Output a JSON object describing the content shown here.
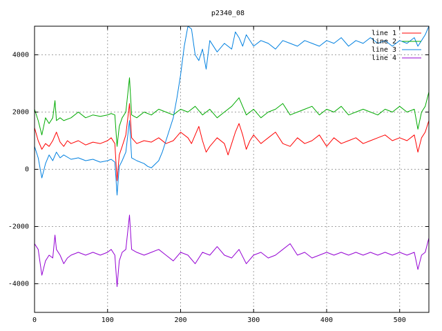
{
  "chart_data": {
    "type": "line",
    "title": "p2340_08",
    "xlabel": "",
    "ylabel": "",
    "xlim": [
      0,
      540
    ],
    "ylim": [
      -5000,
      5000
    ],
    "x_ticks": [
      0,
      100,
      200,
      300,
      400,
      500
    ],
    "y_ticks": [
      -4000,
      -2000,
      0,
      2000,
      4000
    ],
    "grid": true,
    "legend_position": "top-right",
    "series": [
      {
        "name": "line 1",
        "color": "#ff0000",
        "points": [
          [
            0,
            1450
          ],
          [
            5,
            1000
          ],
          [
            10,
            700
          ],
          [
            15,
            900
          ],
          [
            20,
            800
          ],
          [
            25,
            1000
          ],
          [
            30,
            1300
          ],
          [
            35,
            950
          ],
          [
            40,
            800
          ],
          [
            45,
            1000
          ],
          [
            50,
            900
          ],
          [
            60,
            1000
          ],
          [
            70,
            850
          ],
          [
            80,
            950
          ],
          [
            90,
            900
          ],
          [
            100,
            1000
          ],
          [
            105,
            1100
          ],
          [
            110,
            900
          ],
          [
            113,
            -400
          ],
          [
            116,
            500
          ],
          [
            120,
            800
          ],
          [
            125,
            1200
          ],
          [
            130,
            2300
          ],
          [
            133,
            1100
          ],
          [
            140,
            900
          ],
          [
            150,
            1000
          ],
          [
            160,
            950
          ],
          [
            170,
            1100
          ],
          [
            180,
            900
          ],
          [
            190,
            1000
          ],
          [
            200,
            1300
          ],
          [
            210,
            1100
          ],
          [
            215,
            900
          ],
          [
            220,
            1200
          ],
          [
            225,
            1500
          ],
          [
            230,
            1000
          ],
          [
            235,
            600
          ],
          [
            240,
            800
          ],
          [
            250,
            1100
          ],
          [
            260,
            900
          ],
          [
            265,
            500
          ],
          [
            270,
            900
          ],
          [
            275,
            1300
          ],
          [
            280,
            1600
          ],
          [
            285,
            1200
          ],
          [
            290,
            700
          ],
          [
            295,
            1000
          ],
          [
            300,
            1200
          ],
          [
            310,
            900
          ],
          [
            320,
            1100
          ],
          [
            330,
            1300
          ],
          [
            340,
            900
          ],
          [
            350,
            800
          ],
          [
            360,
            1100
          ],
          [
            370,
            900
          ],
          [
            380,
            1000
          ],
          [
            390,
            1200
          ],
          [
            400,
            800
          ],
          [
            410,
            1100
          ],
          [
            420,
            900
          ],
          [
            430,
            1000
          ],
          [
            440,
            1100
          ],
          [
            450,
            900
          ],
          [
            460,
            1000
          ],
          [
            470,
            1100
          ],
          [
            480,
            1200
          ],
          [
            490,
            1000
          ],
          [
            500,
            1100
          ],
          [
            510,
            1000
          ],
          [
            520,
            1200
          ],
          [
            525,
            600
          ],
          [
            530,
            1100
          ],
          [
            535,
            1300
          ],
          [
            540,
            1700
          ]
        ]
      },
      {
        "name": "line 2",
        "color": "#00aa00",
        "points": [
          [
            0,
            2100
          ],
          [
            5,
            1700
          ],
          [
            10,
            1200
          ],
          [
            15,
            1800
          ],
          [
            20,
            1600
          ],
          [
            25,
            1800
          ],
          [
            28,
            2400
          ],
          [
            30,
            1700
          ],
          [
            35,
            1800
          ],
          [
            40,
            1700
          ],
          [
            50,
            1800
          ],
          [
            60,
            2000
          ],
          [
            70,
            1800
          ],
          [
            80,
            1900
          ],
          [
            90,
            1850
          ],
          [
            100,
            1900
          ],
          [
            105,
            1950
          ],
          [
            110,
            1900
          ],
          [
            113,
            800
          ],
          [
            116,
            1500
          ],
          [
            120,
            1800
          ],
          [
            125,
            2000
          ],
          [
            130,
            3200
          ],
          [
            133,
            1900
          ],
          [
            140,
            1800
          ],
          [
            150,
            2000
          ],
          [
            160,
            1900
          ],
          [
            170,
            2100
          ],
          [
            180,
            2000
          ],
          [
            190,
            1900
          ],
          [
            200,
            2100
          ],
          [
            210,
            2000
          ],
          [
            220,
            2200
          ],
          [
            230,
            1900
          ],
          [
            240,
            2100
          ],
          [
            250,
            1800
          ],
          [
            260,
            2000
          ],
          [
            270,
            2200
          ],
          [
            280,
            2500
          ],
          [
            290,
            1900
          ],
          [
            300,
            2100
          ],
          [
            310,
            1800
          ],
          [
            320,
            2000
          ],
          [
            330,
            2100
          ],
          [
            340,
            2300
          ],
          [
            350,
            1900
          ],
          [
            360,
            2000
          ],
          [
            370,
            2100
          ],
          [
            380,
            2200
          ],
          [
            390,
            1900
          ],
          [
            400,
            2100
          ],
          [
            410,
            2000
          ],
          [
            420,
            2200
          ],
          [
            430,
            1900
          ],
          [
            440,
            2000
          ],
          [
            450,
            2100
          ],
          [
            460,
            2000
          ],
          [
            470,
            1900
          ],
          [
            480,
            2100
          ],
          [
            490,
            2000
          ],
          [
            500,
            2200
          ],
          [
            510,
            2000
          ],
          [
            520,
            2100
          ],
          [
            525,
            1400
          ],
          [
            530,
            2000
          ],
          [
            535,
            2200
          ],
          [
            540,
            2700
          ]
        ]
      },
      {
        "name": "line 3",
        "color": "#0080e0",
        "points": [
          [
            0,
            800
          ],
          [
            5,
            400
          ],
          [
            10,
            -300
          ],
          [
            15,
            200
          ],
          [
            20,
            500
          ],
          [
            25,
            300
          ],
          [
            30,
            600
          ],
          [
            35,
            400
          ],
          [
            40,
            500
          ],
          [
            50,
            350
          ],
          [
            60,
            400
          ],
          [
            70,
            300
          ],
          [
            80,
            350
          ],
          [
            90,
            250
          ],
          [
            100,
            300
          ],
          [
            105,
            350
          ],
          [
            110,
            250
          ],
          [
            113,
            -900
          ],
          [
            116,
            100
          ],
          [
            120,
            300
          ],
          [
            125,
            600
          ],
          [
            130,
            1700
          ],
          [
            133,
            400
          ],
          [
            140,
            300
          ],
          [
            150,
            200
          ],
          [
            155,
            100
          ],
          [
            160,
            50
          ],
          [
            170,
            300
          ],
          [
            175,
            600
          ],
          [
            180,
            1000
          ],
          [
            185,
            1400
          ],
          [
            190,
            1800
          ],
          [
            195,
            2500
          ],
          [
            200,
            3300
          ],
          [
            205,
            4300
          ],
          [
            210,
            5000
          ],
          [
            215,
            4900
          ],
          [
            220,
            4000
          ],
          [
            225,
            3800
          ],
          [
            230,
            4200
          ],
          [
            235,
            3500
          ],
          [
            240,
            4500
          ],
          [
            250,
            4100
          ],
          [
            260,
            4400
          ],
          [
            270,
            4200
          ],
          [
            275,
            4800
          ],
          [
            280,
            4600
          ],
          [
            285,
            4300
          ],
          [
            290,
            4700
          ],
          [
            300,
            4300
          ],
          [
            310,
            4500
          ],
          [
            320,
            4400
          ],
          [
            330,
            4200
          ],
          [
            340,
            4500
          ],
          [
            350,
            4400
          ],
          [
            360,
            4300
          ],
          [
            370,
            4500
          ],
          [
            380,
            4400
          ],
          [
            390,
            4300
          ],
          [
            400,
            4500
          ],
          [
            410,
            4400
          ],
          [
            420,
            4600
          ],
          [
            430,
            4300
          ],
          [
            440,
            4500
          ],
          [
            450,
            4400
          ],
          [
            460,
            4600
          ],
          [
            470,
            4400
          ],
          [
            480,
            4500
          ],
          [
            490,
            4300
          ],
          [
            500,
            4500
          ],
          [
            510,
            4400
          ],
          [
            520,
            4600
          ],
          [
            525,
            4300
          ],
          [
            530,
            4500
          ],
          [
            535,
            4700
          ],
          [
            540,
            5000
          ]
        ]
      },
      {
        "name": "line 4",
        "color": "#9400d3",
        "points": [
          [
            0,
            -2600
          ],
          [
            5,
            -2800
          ],
          [
            10,
            -3700
          ],
          [
            15,
            -3200
          ],
          [
            20,
            -3000
          ],
          [
            25,
            -3100
          ],
          [
            28,
            -2300
          ],
          [
            30,
            -2800
          ],
          [
            35,
            -3000
          ],
          [
            40,
            -3300
          ],
          [
            45,
            -3100
          ],
          [
            50,
            -3000
          ],
          [
            60,
            -2900
          ],
          [
            70,
            -3000
          ],
          [
            80,
            -2900
          ],
          [
            90,
            -3000
          ],
          [
            100,
            -2900
          ],
          [
            105,
            -2800
          ],
          [
            110,
            -3000
          ],
          [
            113,
            -4100
          ],
          [
            116,
            -3200
          ],
          [
            120,
            -2900
          ],
          [
            125,
            -2800
          ],
          [
            130,
            -1600
          ],
          [
            133,
            -2800
          ],
          [
            140,
            -2900
          ],
          [
            150,
            -3000
          ],
          [
            160,
            -2900
          ],
          [
            170,
            -2800
          ],
          [
            180,
            -3000
          ],
          [
            190,
            -3200
          ],
          [
            200,
            -2900
          ],
          [
            210,
            -3000
          ],
          [
            220,
            -3300
          ],
          [
            230,
            -2900
          ],
          [
            240,
            -3000
          ],
          [
            250,
            -2700
          ],
          [
            260,
            -3000
          ],
          [
            270,
            -3100
          ],
          [
            280,
            -2800
          ],
          [
            290,
            -3300
          ],
          [
            300,
            -3000
          ],
          [
            310,
            -2900
          ],
          [
            320,
            -3100
          ],
          [
            330,
            -3000
          ],
          [
            340,
            -2800
          ],
          [
            350,
            -2600
          ],
          [
            360,
            -3000
          ],
          [
            370,
            -2900
          ],
          [
            380,
            -3100
          ],
          [
            390,
            -3000
          ],
          [
            400,
            -2900
          ],
          [
            410,
            -3000
          ],
          [
            420,
            -2900
          ],
          [
            430,
            -3000
          ],
          [
            440,
            -2900
          ],
          [
            450,
            -3000
          ],
          [
            460,
            -2900
          ],
          [
            470,
            -3000
          ],
          [
            480,
            -2900
          ],
          [
            490,
            -3000
          ],
          [
            500,
            -2900
          ],
          [
            510,
            -3000
          ],
          [
            520,
            -2900
          ],
          [
            525,
            -3500
          ],
          [
            530,
            -3000
          ],
          [
            535,
            -2900
          ],
          [
            540,
            -2400
          ]
        ]
      }
    ]
  }
}
